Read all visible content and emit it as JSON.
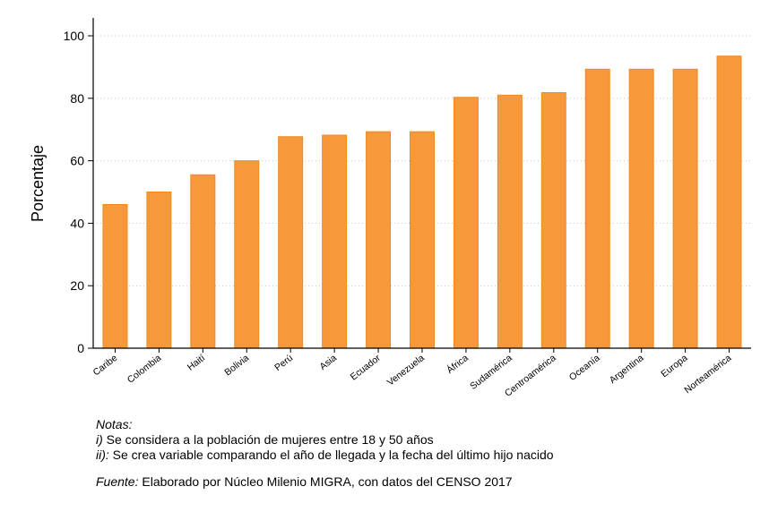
{
  "chart_data": {
    "type": "bar",
    "ylabel": "Porcentaje",
    "ylim": [
      0,
      100
    ],
    "yticks": [
      "0",
      "20",
      "40",
      "60",
      "80",
      "100"
    ],
    "grid": true,
    "categories": [
      "Caribe",
      "Colombia",
      "Haití",
      "Bolivia",
      "Perú",
      "Asia",
      "Ecuador",
      "Venezuela",
      "África",
      "Sudamérica",
      "Centroamérica",
      "Oceanía",
      "Argentina",
      "Europa",
      "Norteamérica"
    ],
    "values": [
      46,
      50,
      55.5,
      60,
      67.7,
      68.2,
      69.3,
      69.3,
      80.3,
      81,
      81.8,
      89.3,
      89.3,
      89.3,
      93.5
    ],
    "bar_color": "#f7993a",
    "bar_edge_color": "#f08a1e"
  },
  "notes": {
    "heading": "Notas:",
    "line1_marker": "i)",
    "line1_text": " Se considera a la población de mujeres entre 18 y 50 años",
    "line2_marker": "ii):",
    "line2_text": " Se crea variable comparando el año de llegada y la fecha del último hijo nacido"
  },
  "source": {
    "label": "Fuente:",
    "text": " Elaborado por Núcleo Milenio MIGRA, con datos del CENSO 2017"
  }
}
